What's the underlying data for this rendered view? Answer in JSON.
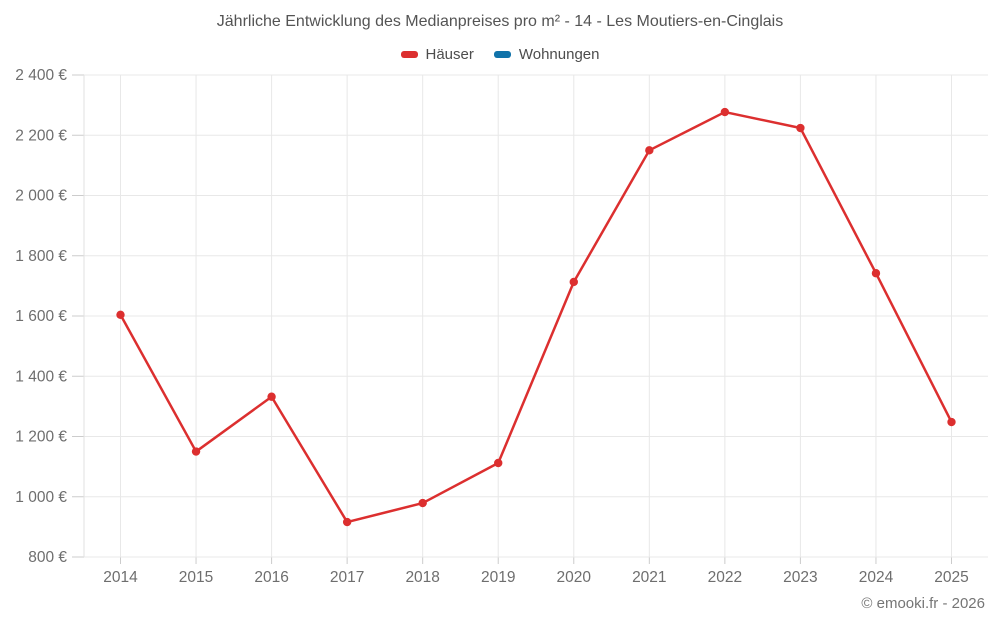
{
  "header": {
    "title": "Jährliche Entwicklung des Medianpreises pro m² - 14 - Les Moutiers-en-Cinglais"
  },
  "footer": {
    "credit": "© emooki.fr - 2026"
  },
  "colors": {
    "grid": "#e8e8e8",
    "axis_line": "#e2e2e2",
    "tick": "#cccccc",
    "axis_text": "#6e6e6e",
    "title_text": "#545454",
    "legend_text": "#4d4d4d",
    "credit_text": "#757575",
    "haeuser_red": "#dc2f2f",
    "wohnungen_blue": "#1173aa"
  },
  "chart_data": {
    "type": "line",
    "title": "Jährliche Entwicklung des Medianpreises pro m² - 14 - Les Moutiers-en-Cinglais",
    "categories": [
      "2014",
      "2015",
      "2016",
      "2017",
      "2018",
      "2019",
      "2020",
      "2021",
      "2022",
      "2023",
      "2024",
      "2025"
    ],
    "series": [
      {
        "name": "Häuser",
        "color": "#dc2f2f",
        "values": [
          1604,
          1150,
          1332,
          916,
          979,
          1112,
          1713,
          2150,
          2277,
          2224,
          1742,
          1248
        ]
      },
      {
        "name": "Wohnungen",
        "color": "#1173aa",
        "values": []
      }
    ],
    "xlabel": "",
    "ylabel": "",
    "ylim": [
      800,
      2400
    ],
    "ytick_values": [
      800,
      1000,
      1200,
      1400,
      1600,
      1800,
      2000,
      2200,
      2400
    ],
    "ytick_labels": [
      "800 €",
      "1 000 €",
      "1 200 €",
      "1 400 €",
      "1 600 €",
      "1 800 €",
      "2 000 €",
      "2 200 €",
      "2 400 €"
    ],
    "grid": true,
    "legend_position": "top",
    "marker": "circle",
    "annotation": "© emooki.fr - 2026"
  }
}
